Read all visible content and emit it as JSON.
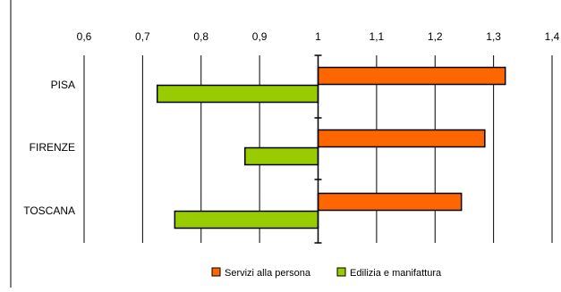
{
  "chart_data": {
    "type": "bar",
    "orientation": "horizontal",
    "baseline": 1,
    "xlim": [
      0.6,
      1.4
    ],
    "x_ticks": [
      "0,6",
      "0,7",
      "0,8",
      "0,9",
      "1",
      "1,1",
      "1,2",
      "1,3",
      "1,4"
    ],
    "x_tick_values": [
      0.6,
      0.7,
      0.8,
      0.9,
      1.0,
      1.1,
      1.2,
      1.3,
      1.4
    ],
    "grid": "vertical",
    "legend_position": "bottom",
    "categories": [
      "PISA",
      "FIRENZE",
      "TOSCANA"
    ],
    "series": [
      {
        "name": "Servizi alla persona",
        "color": "#FF6600",
        "values": [
          1.32,
          1.285,
          1.245
        ]
      },
      {
        "name": "Edilizia e manifattura",
        "color": "#99CC00",
        "values": [
          0.725,
          0.875,
          0.755
        ]
      }
    ]
  }
}
